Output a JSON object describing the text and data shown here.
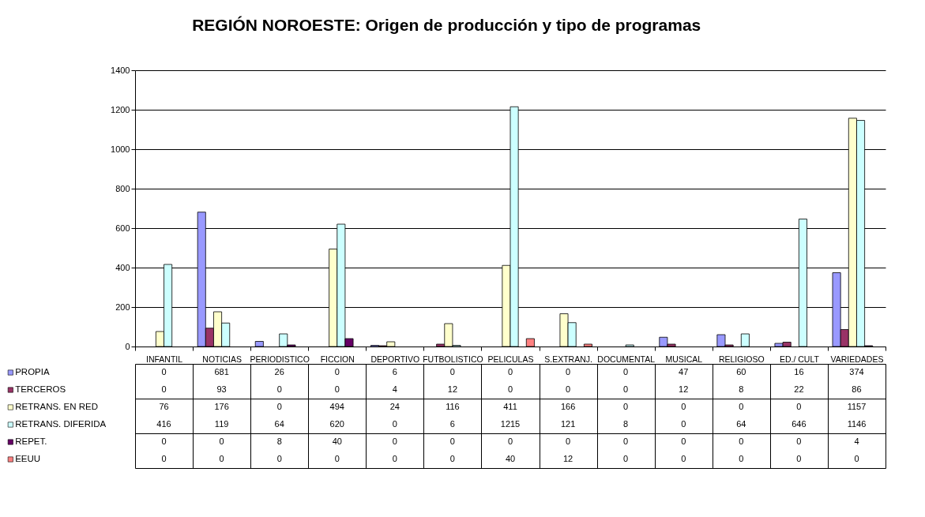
{
  "chart_data": {
    "type": "bar",
    "title": "REGIÓN NOROESTE: Origen de producción y tipo de programas",
    "categories": [
      "INFANTIL",
      "NOTICIAS",
      "PERIODISTICO",
      "FICCION",
      "DEPORTIVO",
      "FUTBOLISTICO",
      "PELICULAS",
      "S.EXTRANJ.",
      "DOCUMENTAL",
      "MUSICAL",
      "RELIGIOSO",
      "ED./ CULT",
      "VARIEDADES"
    ],
    "series": [
      {
        "name": "PROPIA",
        "color": "#9999ff",
        "values": [
          0,
          681,
          26,
          0,
          6,
          0,
          0,
          0,
          0,
          47,
          60,
          16,
          374
        ]
      },
      {
        "name": "TERCEROS",
        "color": "#993366",
        "values": [
          0,
          93,
          0,
          0,
          4,
          12,
          0,
          0,
          0,
          12,
          8,
          22,
          86
        ]
      },
      {
        "name": "RETRANS. EN RED",
        "color": "#ffffcc",
        "values": [
          76,
          176,
          0,
          494,
          24,
          116,
          411,
          166,
          0,
          0,
          0,
          0,
          1157
        ]
      },
      {
        "name": "RETRANS. DIFERIDA",
        "color": "#ccffff",
        "values": [
          416,
          119,
          64,
          620,
          0,
          6,
          1215,
          121,
          8,
          0,
          64,
          646,
          1146
        ]
      },
      {
        "name": "REPET.",
        "color": "#660066",
        "values": [
          0,
          0,
          8,
          40,
          0,
          0,
          0,
          0,
          0,
          0,
          0,
          0,
          4
        ]
      },
      {
        "name": "EEUU",
        "color": "#ff8080",
        "values": [
          0,
          0,
          0,
          0,
          0,
          0,
          40,
          12,
          0,
          0,
          0,
          0,
          0
        ]
      }
    ],
    "ylim": [
      0,
      1400
    ],
    "yticks": [
      0,
      200,
      400,
      600,
      800,
      1000,
      1200,
      1400
    ],
    "grid": "y",
    "legend": "bottom",
    "data_labels": true
  }
}
